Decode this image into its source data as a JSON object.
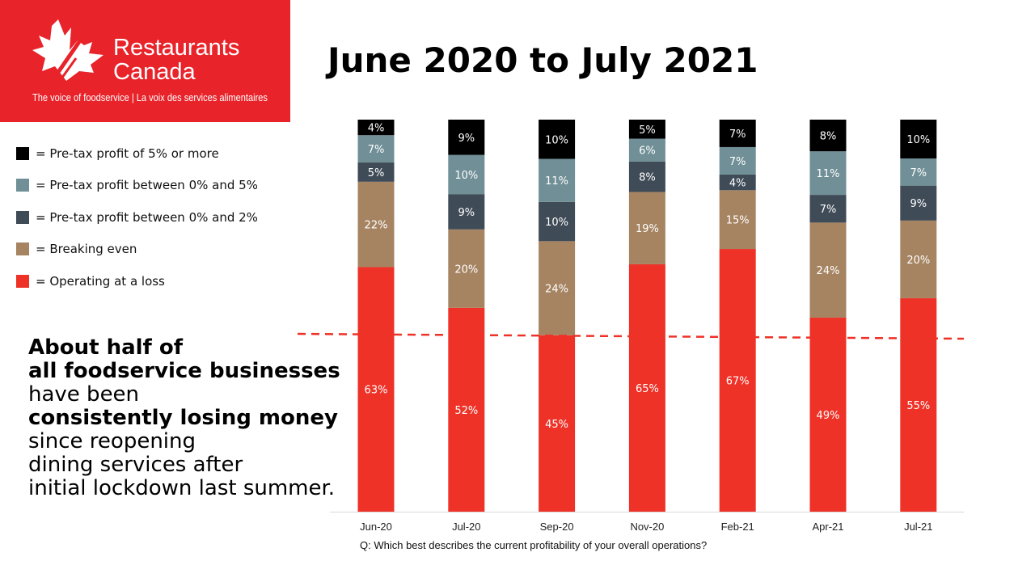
{
  "logo": {
    "name_line1": "Restaurants",
    "name_line2": "Canada",
    "tagline": "The voice of foodservice | La voix des services alimentaires",
    "brand_color": "#e8232a"
  },
  "title": "June 2020 to July 2021",
  "legend": [
    {
      "label": "= Pre-tax profit of 5% or more",
      "color": "#000000"
    },
    {
      "label": "= Pre-tax profit between 0% and 5%",
      "color": "#708f96"
    },
    {
      "label": "= Pre-tax profit between 0% and 2%",
      "color": "#3f4b57"
    },
    {
      "label": "= Breaking even",
      "color": "#a68462"
    },
    {
      "label": "= Operating at a loss",
      "color": "#ee3228"
    }
  ],
  "callout": {
    "line1": "About half of",
    "line2": "all foodservice businesses",
    "line3": "have been",
    "line4": "consistently losing money",
    "line5": "since reopening",
    "line6": "dining services after",
    "line7": "initial lockdown last summer."
  },
  "question": "Q: Which best describes the current profitability  of your overall operations?",
  "chart_data": {
    "type": "bar",
    "stacked": true,
    "categories": [
      "Jun-20",
      "Jul-20",
      "Sep-20",
      "Nov-20",
      "Feb-21",
      "Apr-21",
      "Jul-21"
    ],
    "series": [
      {
        "name": "= Operating at a loss",
        "color": "#ee3228",
        "values": [
          63,
          52,
          45,
          65,
          67,
          49,
          55
        ]
      },
      {
        "name": "= Breaking even",
        "color": "#a68462",
        "values": [
          22,
          20,
          24,
          19,
          15,
          24,
          20
        ]
      },
      {
        "name": "= Pre-tax profit between 0% and 2%",
        "color": "#3f4b57",
        "values": [
          5,
          9,
          10,
          8,
          4,
          7,
          9
        ]
      },
      {
        "name": "= Pre-tax profit between 0% and 5%",
        "color": "#708f96",
        "values": [
          7,
          10,
          11,
          6,
          7,
          11,
          7
        ]
      },
      {
        "name": "= Pre-tax profit of 5% or more",
        "color": "#000000",
        "values": [
          4,
          9,
          10,
          5,
          7,
          8,
          10
        ]
      }
    ],
    "value_suffix": "%",
    "reference_line": {
      "style": "dashed",
      "color": "#ee3228"
    },
    "legend_position": "left",
    "grid": false
  }
}
